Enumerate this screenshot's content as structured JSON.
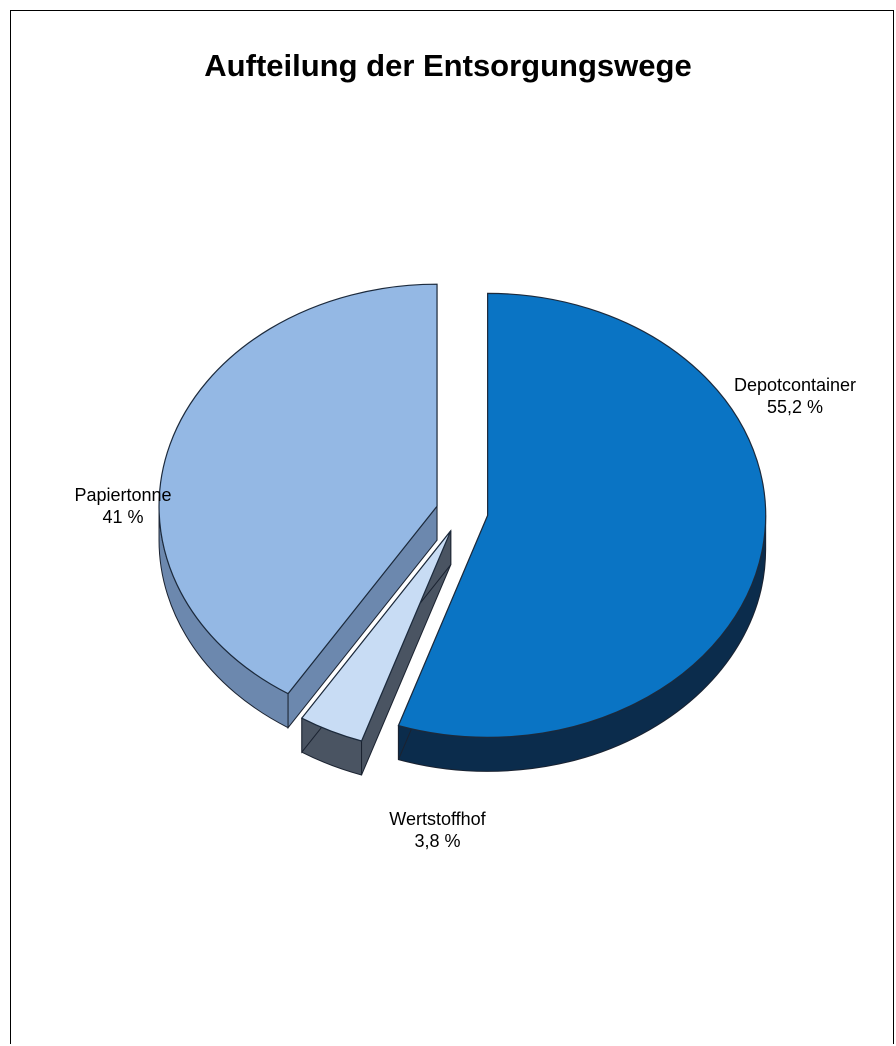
{
  "chart_data": {
    "type": "pie",
    "title": "Aufteilung der Entsorgungswege",
    "slices": [
      {
        "label": "Depotcontainer",
        "value": 55.2,
        "value_label": "55,2 %",
        "color": "#0A74C4",
        "side_color": "#0B2C4C",
        "exploded": true
      },
      {
        "label": "Wertstoffhof",
        "value": 3.8,
        "value_label": "3,8 %",
        "color": "#C8DCF4",
        "side_color": "#4A5462",
        "exploded": true
      },
      {
        "label": "Papiertonne",
        "value": 41,
        "value_label": "41 %",
        "color": "#94B8E4",
        "side_color": "#6C88AE",
        "exploded": true
      }
    ],
    "view": "3d",
    "legend": "none",
    "data_labels": "outside"
  }
}
